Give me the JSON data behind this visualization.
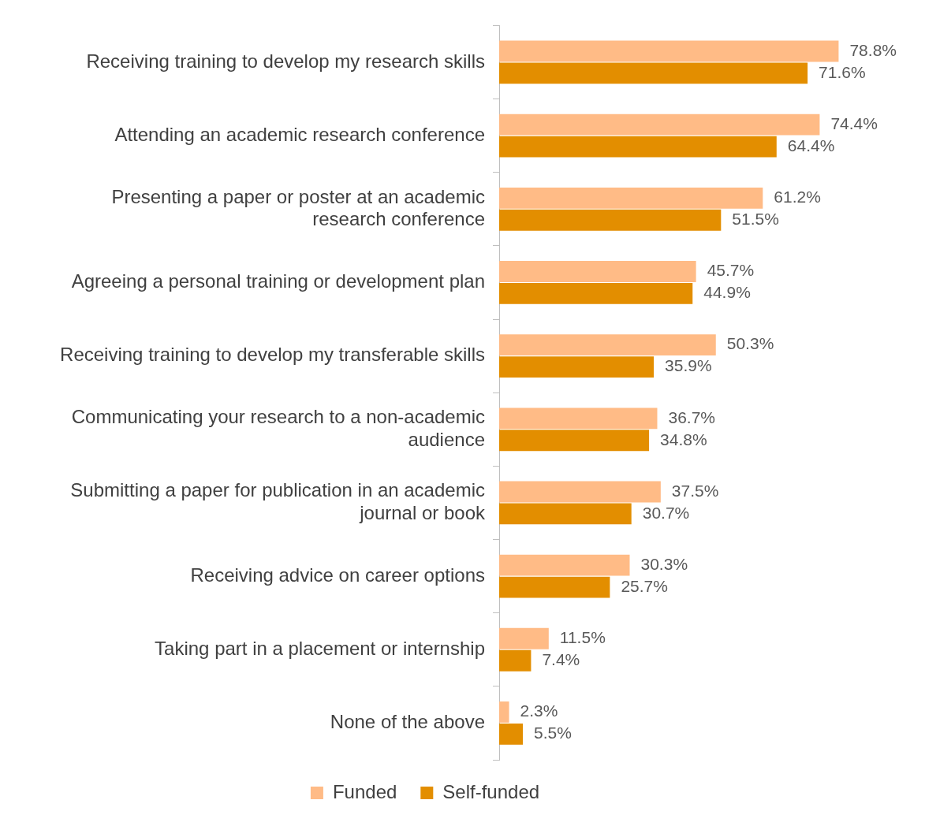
{
  "chart_data": {
    "type": "bar",
    "orientation": "horizontal",
    "legend": "bottom",
    "grid": false,
    "tick_labels": "y",
    "categories": [
      "Receiving training to develop my research skills",
      "Attending an academic research conference",
      "Presenting a paper or poster at an academic research conference",
      "Agreeing a personal training or development plan",
      "Receiving training to develop my transferable skills",
      "Communicating your research to a non-academic audience",
      "Submitting a paper for publication in an academic journal or book",
      "Receiving advice on career options",
      "Taking part in a placement or internship",
      "None of the above"
    ],
    "series": [
      {
        "name": "Funded",
        "color": "#ffbb86",
        "values": [
          78.8,
          74.4,
          61.2,
          45.7,
          50.3,
          36.7,
          37.5,
          30.3,
          11.5,
          2.3
        ],
        "value_labels": [
          "78.8%",
          "74.4%",
          "61.2%",
          "45.7%",
          "50.3%",
          "36.7%",
          "37.5%",
          "30.3%",
          "11.5%",
          "2.3%"
        ]
      },
      {
        "name": "Self-funded",
        "color": "#e38e00",
        "values": [
          71.6,
          64.4,
          51.5,
          44.9,
          35.9,
          34.8,
          30.7,
          25.7,
          7.4,
          5.5
        ],
        "value_labels": [
          "71.6%",
          "64.4%",
          "51.5%",
          "44.9%",
          "35.9%",
          "34.8%",
          "30.7%",
          "25.7%",
          "7.4%",
          "5.5%"
        ]
      }
    ]
  }
}
